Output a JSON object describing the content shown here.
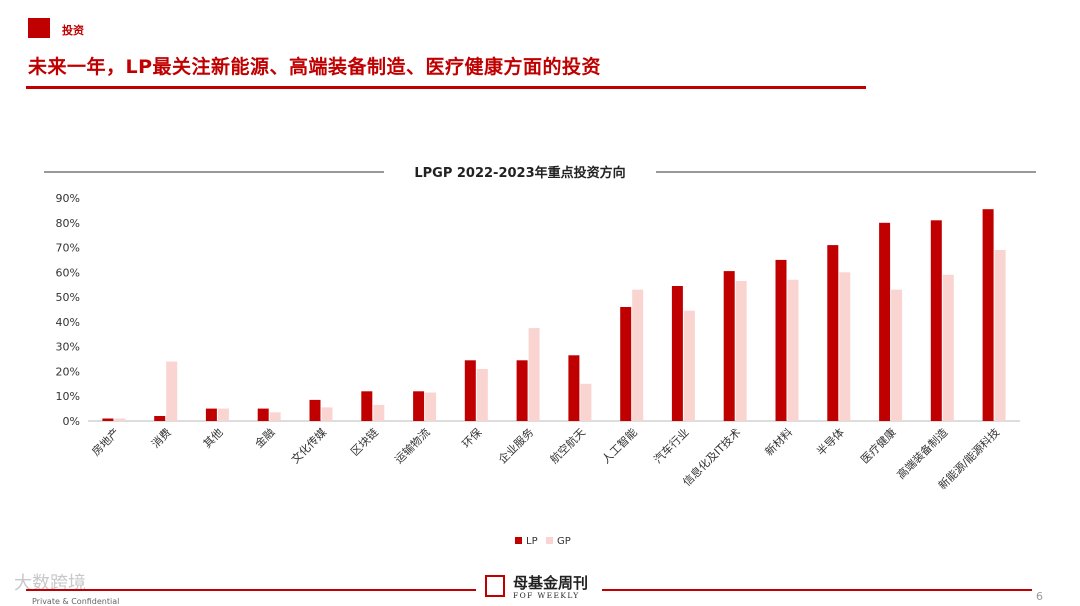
{
  "section_tag": "投资",
  "headline": "未来一年，LP最关注新能源、高端装备制造、医疗健康方面的投资",
  "footer": {
    "logo_name": "母基金周刊",
    "logo_sub": "FOF WEEKLY",
    "left_text": "Private & Confidential",
    "watermark": "大数跨境",
    "page_number": "6"
  },
  "colors": {
    "accent": "#c00000",
    "lp": "#c00000",
    "gp": "#fad4d0"
  },
  "chart_data": {
    "type": "bar",
    "title": "LPGP 2022-2023年重点投资方向",
    "categories": [
      "房地产",
      "消费",
      "其他",
      "金融",
      "文化传媒",
      "区块链",
      "运输物流",
      "环保",
      "企业服务",
      "航空航天",
      "人工智能",
      "汽车行业",
      "信息化及IT技术",
      "新材料",
      "半导体",
      "医疗健康",
      "高端装备制造",
      "新能源/能源科技"
    ],
    "series": [
      {
        "name": "LP",
        "values": [
          1,
          2,
          5,
          5,
          8.5,
          12,
          12,
          24.5,
          24.5,
          26.5,
          46,
          54.5,
          60.5,
          65,
          71,
          80,
          81,
          85.5
        ]
      },
      {
        "name": "GP",
        "values": [
          1,
          24,
          5,
          3.5,
          5.5,
          6.5,
          11.5,
          21,
          37.5,
          15,
          53,
          44.5,
          56.5,
          57,
          60,
          53,
          59,
          69
        ]
      }
    ],
    "yticks": [
      "0%",
      "10%",
      "20%",
      "30%",
      "40%",
      "50%",
      "60%",
      "70%",
      "80%",
      "90%"
    ],
    "ylim": [
      0,
      90
    ],
    "legend_position": "bottom",
    "grid": false
  }
}
